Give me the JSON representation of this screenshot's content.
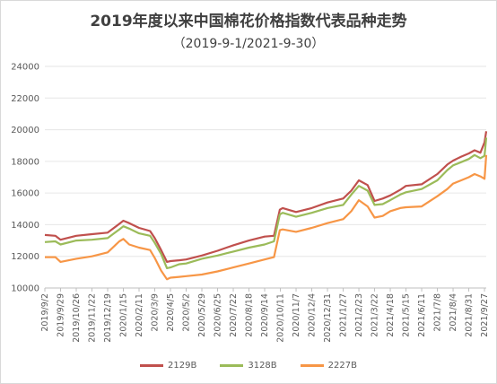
{
  "chart_data": {
    "type": "line",
    "title": "2019年度以来中国棉花价格指数代表品种走势",
    "subtitle": "（2019-9-1/2021-9-30）",
    "ylim": [
      10000,
      24000
    ],
    "yticks": [
      10000,
      12000,
      14000,
      16000,
      18000,
      20000,
      22000,
      24000
    ],
    "ytick_labels": [
      "10000",
      "12000",
      "14000",
      "16000",
      "18000",
      "20000",
      "22000",
      "24000"
    ],
    "xlim": [
      "2019-09-02",
      "2021-09-30"
    ],
    "xticks": [
      "2019-09-02",
      "2019-09-29",
      "2019-10-26",
      "2019-11-22",
      "2019-12-19",
      "2020-01-15",
      "2020-02-11",
      "2020-03-09",
      "2020-04-05",
      "2020-05-02",
      "2020-05-29",
      "2020-06-25",
      "2020-07-22",
      "2020-08-18",
      "2020-09-14",
      "2020-10-11",
      "2020-11-07",
      "2020-12-04",
      "2020-12-31",
      "2021-01-27",
      "2021-02-23",
      "2021-03-22",
      "2021-04-18",
      "2021-05-15",
      "2021-06-11",
      "2021-07-08",
      "2021-08-04",
      "2021-08-31",
      "2021-09-27"
    ],
    "xtick_labels": [
      "2019/9/2",
      "2019/9/29",
      "2019/10/26",
      "2019/11/22",
      "2019/12/19",
      "2020/1/15",
      "2020/2/11",
      "2020/3/9",
      "2020/4/5",
      "2020/5/2",
      "2020/5/29",
      "2020/6/25",
      "2020/7/22",
      "2020/8/18",
      "2020/9/14",
      "2020/10/11",
      "2020/11/7",
      "2020/12/4",
      "2020/12/31",
      "2021/1/27",
      "2021/2/23",
      "2021/3/22",
      "2021/4/18",
      "2021/5/15",
      "2021/6/11",
      "2021/7/8",
      "2021/8/4",
      "2021/8/31",
      "2021/9/27"
    ],
    "grid": "horizontal",
    "legend_position": "bottom",
    "x": [
      "2019-09-02",
      "2019-09-20",
      "2019-09-29",
      "2019-10-26",
      "2019-11-22",
      "2019-12-19",
      "2020-01-08",
      "2020-01-15",
      "2020-01-25",
      "2020-02-11",
      "2020-03-01",
      "2020-03-09",
      "2020-03-20",
      "2020-03-30",
      "2020-04-05",
      "2020-04-20",
      "2020-05-02",
      "2020-05-29",
      "2020-06-25",
      "2020-07-22",
      "2020-08-18",
      "2020-09-14",
      "2020-09-30",
      "2020-10-10",
      "2020-10-15",
      "2020-11-07",
      "2020-12-04",
      "2020-12-31",
      "2021-01-27",
      "2021-02-10",
      "2021-02-23",
      "2021-03-10",
      "2021-03-22",
      "2021-04-05",
      "2021-04-18",
      "2021-05-05",
      "2021-05-15",
      "2021-06-11",
      "2021-07-08",
      "2021-07-25",
      "2021-08-04",
      "2021-08-18",
      "2021-08-31",
      "2021-09-10",
      "2021-09-20",
      "2021-09-27",
      "2021-09-30"
    ],
    "series": [
      {
        "name": "2129B",
        "color": "#c0504d",
        "values": [
          13350,
          13300,
          13050,
          13300,
          13400,
          13500,
          14050,
          14250,
          14100,
          13800,
          13600,
          13150,
          12400,
          11650,
          11700,
          11750,
          11800,
          12050,
          12350,
          12700,
          13000,
          13250,
          13300,
          14950,
          15050,
          14800,
          15050,
          15400,
          15650,
          16150,
          16800,
          16500,
          15500,
          15650,
          15850,
          16200,
          16450,
          16550,
          17200,
          17800,
          18050,
          18300,
          18500,
          18700,
          18550,
          19200,
          19900
        ]
      },
      {
        "name": "3128B",
        "color": "#9bbb59",
        "values": [
          12900,
          12950,
          12750,
          13000,
          13050,
          13150,
          13700,
          13900,
          13750,
          13450,
          13300,
          12850,
          12150,
          11250,
          11300,
          11500,
          11550,
          11850,
          12050,
          12300,
          12550,
          12750,
          12950,
          14650,
          14750,
          14500,
          14750,
          15050,
          15250,
          15900,
          16450,
          16150,
          15250,
          15300,
          15550,
          15900,
          16050,
          16250,
          16800,
          17450,
          17750,
          17950,
          18150,
          18400,
          18200,
          18350,
          19500
        ]
      },
      {
        "name": "2227B",
        "color": "#f79646",
        "values": [
          11950,
          11950,
          11650,
          11850,
          12000,
          12250,
          12950,
          13100,
          12750,
          12550,
          12400,
          11900,
          11100,
          10550,
          10650,
          10700,
          10750,
          10850,
          11050,
          11300,
          11550,
          11800,
          11950,
          13650,
          13700,
          13550,
          13800,
          14100,
          14350,
          14850,
          15550,
          15150,
          14450,
          14550,
          14850,
          15050,
          15100,
          15150,
          15800,
          16250,
          16600,
          16800,
          17000,
          17200,
          17050,
          16900,
          18400
        ]
      }
    ]
  }
}
